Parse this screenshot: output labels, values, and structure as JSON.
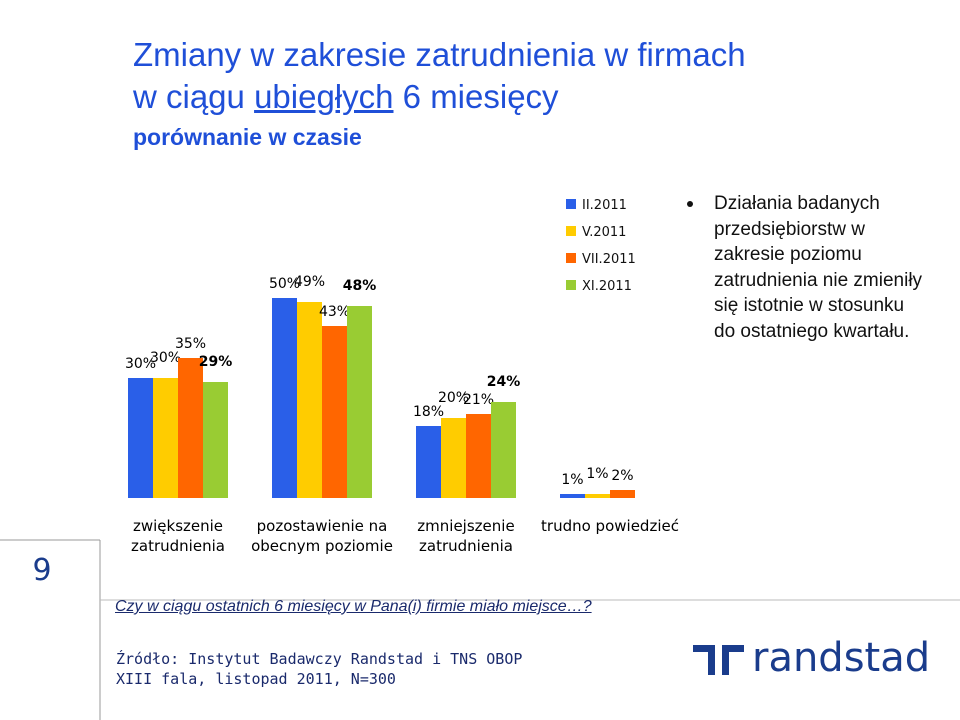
{
  "header": {
    "title_line1": "Zmiany w zakresie zatrudnienia w firmach",
    "title_line2": [
      "w ciągu",
      "ubiegłych",
      "6 miesięcy"
    ],
    "subtitle": "porównanie w czasie"
  },
  "chart_data": {
    "type": "bar",
    "categories": [
      "zwiększenie zatrudnienia",
      "pozostawienie na obecnym poziomie",
      "zmniejszenie zatrudnienia",
      "trudno powiedzieć"
    ],
    "series": [
      {
        "name": "II.2011",
        "color": "#2a5fe8",
        "values": [
          30,
          50,
          18,
          1
        ],
        "value_labels": [
          "30%",
          "50%",
          "18%",
          "1%"
        ]
      },
      {
        "name": "V.2011",
        "color": "#ffcc00",
        "values": [
          30,
          49,
          20,
          1
        ],
        "value_labels": [
          "30%",
          "49%",
          "20%",
          "1%"
        ]
      },
      {
        "name": "VII.2011",
        "color": "#ff6600",
        "values": [
          35,
          43,
          21,
          2
        ],
        "value_labels": [
          "35%",
          "43%",
          "21%",
          "2%"
        ]
      },
      {
        "name": "XI.2011",
        "color": "#99cc33",
        "values": [
          29,
          48,
          24,
          null
        ],
        "value_labels": [
          "29%",
          "48%",
          "24%",
          null
        ]
      }
    ]
  },
  "bullet": "Działania badanych przedsiębiorstw w zakresie poziomu zatrudnienia nie zmieniły się istotnie w stosunku do ostatniego kwartału.",
  "page_number": "9",
  "question": "Czy w ciągu ostatnich 6 miesięcy w Pana(i) firmie miało miejsce…?",
  "source": [
    "Źródło: Instytut Badawczy Randstad i TNS OBOP",
    "XIII fala, listopad 2011, N=300"
  ],
  "logo": "randstad"
}
